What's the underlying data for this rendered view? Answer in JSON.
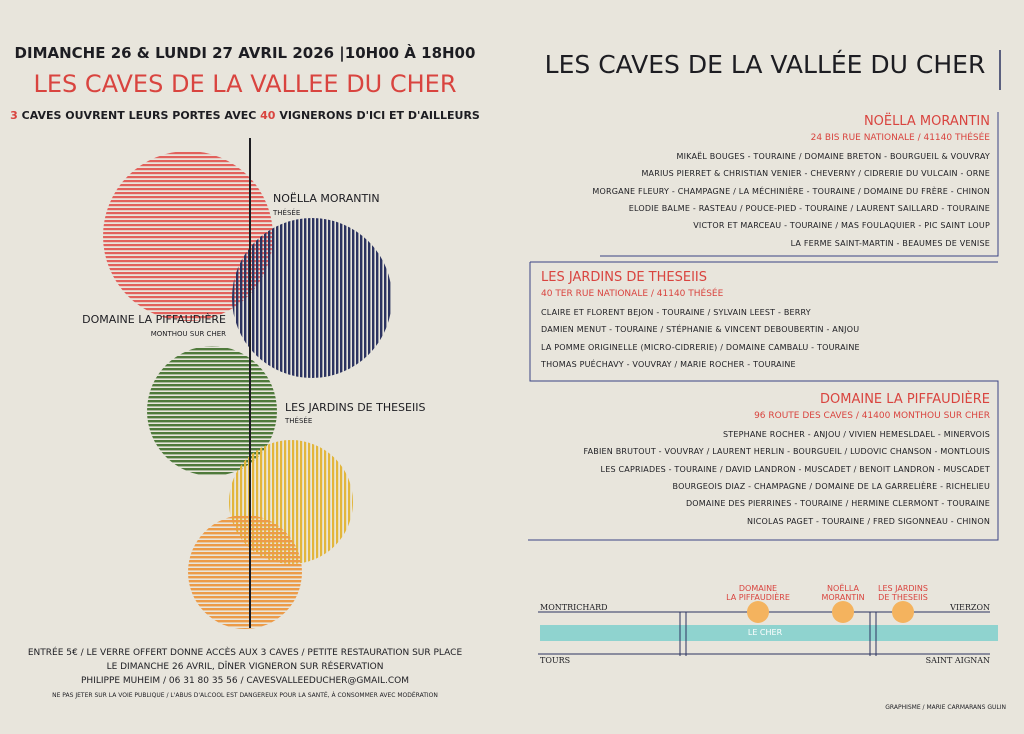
{
  "left": {
    "date_line": "DIMANCHE 26 & LUNDI 27 AVRIL 2026 |10H00 À 18H00",
    "title": "LES CAVES DE LA VALLEE DU CHER",
    "subtitle": [
      "3",
      "CAVES OUVRENT LEURS PORTES AVEC",
      "40",
      "VIGNERONS D'ICI ET D'AILLEURS"
    ],
    "circle_labels": [
      {
        "name": "NOËLLA MORANTIN",
        "place": "THÉSÉE"
      },
      {
        "name": "DOMAINE LA PIFFAUDIÈRE",
        "place": "MONTHOU SUR CHER"
      },
      {
        "name": "LES JARDINS DE THESEIIS",
        "place": "THÉSÉE"
      }
    ],
    "footer": [
      "ENTRÉE 5€ / LE VERRE OFFERT DONNE ACCÈS AUX 3 CAVES / PETITE RESTAURATION SUR PLACE",
      "LE DIMANCHE 26 AVRIL, DÎNER VIGNERON SUR RÉSERVATION",
      "PHILIPPE MUHEIM / 06 31 80 35 56 / CAVESVALLEEDUCHER@GMAIL.COM",
      "NE PAS JETER SUR LA VOIE PUBLIQUE / L'ABUS D'ALCOOL EST DANGEREUX POUR LA SANTÉ, À CONSOMMER AVEC MODÉRATION"
    ]
  },
  "right": {
    "title": "LES CAVES DE LA VALLÉE DU CHER",
    "cellars": [
      {
        "name": "NOËLLA MORANTIN",
        "address": "24 BIS RUE NATIONALE / 41140 THÉSÉE",
        "vignerons": [
          "MIKAËL BOUGES - TOURAINE / DOMAINE BRETON - BOURGUEIL & VOUVRAY",
          "MARIUS PIERRET & CHRISTIAN VENIER - CHEVERNY / CIDRERIE DU VULCAIN - ORNE",
          "MORGANE FLEURY - CHAMPAGNE / LA MÉCHINIÈRE - TOURAINE / DOMAINE DU FRÈRE - CHINON",
          "ELODIE BALME - RASTEAU / POUCE-PIED - TOURAINE / LAURENT SAILLARD - TOURAINE",
          "VICTOR ET MARCEAU - TOURAINE / MAS FOULAQUIER - PIC SAINT LOUP",
          "LA FERME SAINT-MARTIN - BEAUMES DE VENISE"
        ]
      },
      {
        "name": "LES JARDINS DE THESEIIS",
        "address": "40 TER RUE NATIONALE / 41140 THÉSÉE",
        "vignerons": [
          "CLAIRE ET FLORENT BEJON - TOURAINE / SYLVAIN LEEST - BERRY",
          "DAMIEN MENUT - TOURAINE / STÉPHANIE & VINCENT DEBOUBERTIN - ANJOU",
          "LA POMME ORIGINELLE (MICRO-CIDRERIE) / DOMAINE CAMBALU - TOURAINE",
          "THOMAS PUÉCHAVY - VOUVRAY / MARIE ROCHER - TOURAINE"
        ]
      },
      {
        "name": "DOMAINE LA PIFFAUDIÈRE",
        "address": "96 ROUTE DES CAVES / 41400 MONTHOU SUR CHER",
        "vignerons": [
          "STEPHANE ROCHER - ANJOU / VIVIEN HEMESLDAEL - MINERVOIS",
          "FABIEN BRUTOUT - VOUVRAY / LAURENT HERLIN - BOURGUEIL / LUDOVIC CHANSON - MONTLOUIS",
          "LES CAPRIADES - TOURAINE / DAVID LANDRON - MUSCADET / BENOIT LANDRON - MUSCADET",
          "BOURGEOIS DIAZ - CHAMPAGNE / DOMAINE DE LA GARRELIÈRE - RICHELIEU",
          "DOMAINE DES PIERRINES - TOURAINE / HERMINE CLERMONT - TOURAINE",
          "NICOLAS PAGET - TOURAINE / FRED SIGONNEAU - CHINON"
        ]
      }
    ],
    "map": {
      "towns": [
        "MONTRICHARD",
        "VIERZON",
        "TOURS",
        "SAINT AIGNAN"
      ],
      "river": "LE CHER",
      "stops": [
        [
          "DOMAINE",
          "LA PIFFAUDIÈRE"
        ],
        [
          "NOËLLA",
          "MORANTIN"
        ],
        [
          "LES JARDINS",
          "DE THESEIIS"
        ]
      ]
    },
    "credit": "GRAPHISME / MARIE CARMARANS GULIN"
  }
}
